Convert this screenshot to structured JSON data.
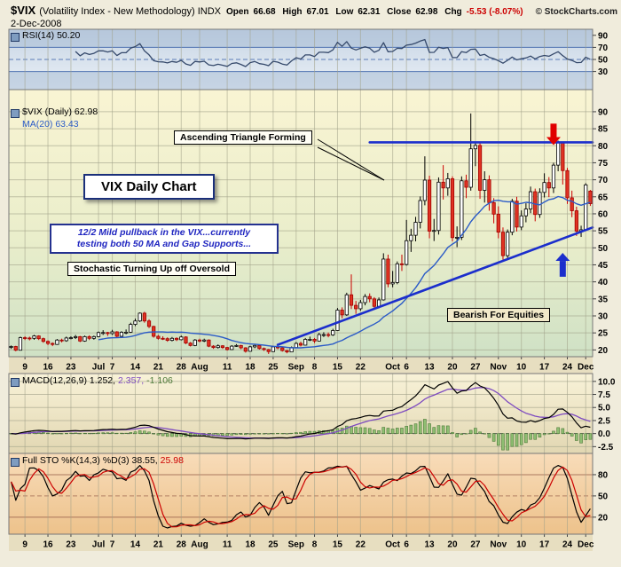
{
  "header": {
    "symbol": "$VIX",
    "name": "(Volatility Index - New Methodology) INDX",
    "date": "2-Dec-2008",
    "quote": {
      "open_label": "Open",
      "open": "66.68",
      "high_label": "High",
      "high": "67.01",
      "low_label": "Low",
      "low": "62.31",
      "close_label": "Close",
      "close": "62.98",
      "chg_label": "Chg",
      "chg": "-5.53 (-8.07%)"
    },
    "copyright": "© StockCharts.com"
  },
  "panels": {
    "rsi": {
      "label": "RSI(14) 50.20"
    },
    "main": {
      "label": "$VIX (Daily) 62.98",
      "ma_label": "MA(20) 63.43"
    },
    "macd": {
      "label": "MACD(12,26,9)",
      "value1": "1.252,",
      "value2": "2.357,",
      "value3": "-1.106"
    },
    "sto": {
      "label": "Full STO %K(14,3) %D(3)",
      "value1": "38.55,",
      "value2": "25.98"
    }
  },
  "annotations": {
    "triangle": "Ascending Triangle Forming",
    "title": "VIX Daily Chart",
    "pullback_line1": "12/2  Mild pullback in the VIX...currently",
    "pullback_line2": "testing both 50 MA and Gap Supports...",
    "stochastic": "Stochastic Turning Up off Oversold",
    "bearish": "Bearish For Equities"
  },
  "colors": {
    "up_candle": "#000000",
    "down_candle": "#cc0000",
    "ma20": "#2b5bc7",
    "trendline": "#1b2ecc",
    "rsi_line": "#35496b",
    "macd_line": "#000000",
    "macd_signal": "#7e4bc0",
    "macd_hist": "#8fbe72",
    "sto_k": "#000000",
    "sto_d": "#cc0000",
    "chg_negative": "#cc0000",
    "red_arrow": "#e00000",
    "blue_arrow": "#1b2ecc"
  },
  "chart_data": {
    "type": "candlestick",
    "title": "$VIX (Daily)",
    "date_range": "Jun 2008 - 2 Dec 2008",
    "ohlc": [
      [
        20.8,
        21.3,
        20.3,
        21.0
      ],
      [
        21.0,
        21.2,
        19.6,
        19.9
      ],
      [
        19.9,
        23.9,
        19.8,
        23.6
      ],
      [
        23.6,
        24.0,
        22.9,
        23.5
      ],
      [
        23.5,
        23.9,
        22.8,
        23.4
      ],
      [
        23.4,
        24.4,
        23.0,
        24.1
      ],
      [
        24.1,
        24.3,
        22.9,
        23.3
      ],
      [
        23.3,
        23.6,
        22.1,
        22.5
      ],
      [
        22.5,
        22.8,
        21.4,
        21.9
      ],
      [
        21.9,
        22.2,
        21.1,
        21.6
      ],
      [
        21.6,
        23.2,
        21.5,
        22.9
      ],
      [
        22.9,
        23.3,
        22.2,
        22.7
      ],
      [
        22.7,
        23.9,
        22.4,
        23.5
      ],
      [
        23.5,
        24.0,
        23.1,
        23.6
      ],
      [
        23.6,
        24.4,
        23.2,
        23.9
      ],
      [
        23.9,
        24.1,
        22.3,
        22.6
      ],
      [
        22.6,
        24.2,
        22.4,
        23.9
      ],
      [
        23.9,
        24.3,
        22.9,
        23.4
      ],
      [
        23.4,
        24.2,
        23.0,
        23.9
      ],
      [
        23.9,
        25.4,
        23.7,
        25.1
      ],
      [
        25.1,
        25.8,
        24.4,
        25.1
      ],
      [
        25.1,
        25.3,
        24.1,
        24.8
      ],
      [
        24.8,
        25.9,
        24.4,
        25.3
      ],
      [
        25.3,
        25.5,
        23.6,
        24.0
      ],
      [
        24.0,
        25.5,
        23.8,
        25.2
      ],
      [
        25.2,
        26.0,
        24.6,
        25.2
      ],
      [
        25.2,
        28.0,
        25.0,
        27.5
      ],
      [
        27.5,
        29.2,
        27.0,
        28.5
      ],
      [
        28.5,
        31.0,
        28.2,
        30.8
      ],
      [
        30.8,
        31.2,
        28.0,
        28.5
      ],
      [
        28.5,
        29.0,
        26.4,
        26.9
      ],
      [
        26.9,
        27.1,
        23.6,
        24.0
      ],
      [
        24.0,
        24.4,
        23.0,
        23.4
      ],
      [
        23.4,
        24.0,
        22.9,
        23.3
      ],
      [
        23.3,
        23.7,
        22.4,
        22.8
      ],
      [
        22.8,
        23.8,
        22.5,
        23.4
      ],
      [
        23.4,
        23.7,
        22.6,
        23.0
      ],
      [
        23.0,
        24.2,
        22.8,
        23.8
      ],
      [
        23.8,
        24.0,
        21.7,
        22.0
      ],
      [
        22.0,
        22.3,
        21.0,
        21.3
      ],
      [
        21.3,
        23.2,
        21.1,
        22.9
      ],
      [
        22.9,
        23.3,
        22.2,
        22.6
      ],
      [
        22.6,
        23.3,
        22.3,
        22.9
      ],
      [
        22.9,
        23.1,
        20.8,
        21.1
      ],
      [
        21.1,
        21.4,
        20.3,
        20.7
      ],
      [
        20.7,
        21.6,
        20.4,
        21.2
      ],
      [
        21.2,
        21.4,
        20.3,
        20.7
      ],
      [
        20.7,
        20.9,
        19.8,
        20.1
      ],
      [
        20.1,
        21.4,
        20.0,
        21.1
      ],
      [
        21.1,
        21.7,
        20.9,
        21.3
      ],
      [
        21.3,
        21.5,
        20.2,
        20.6
      ],
      [
        20.6,
        20.8,
        19.2,
        19.6
      ],
      [
        19.6,
        21.2,
        19.5,
        20.9
      ],
      [
        20.9,
        21.7,
        20.5,
        21.3
      ],
      [
        21.3,
        21.5,
        20.1,
        20.4
      ],
      [
        20.4,
        20.7,
        19.7,
        20.1
      ],
      [
        20.1,
        20.3,
        18.8,
        19.5
      ],
      [
        19.5,
        21.2,
        19.4,
        20.9
      ],
      [
        20.9,
        21.2,
        20.2,
        20.6
      ],
      [
        20.6,
        20.9,
        19.5,
        19.8
      ],
      [
        19.8,
        20.0,
        19.0,
        19.4
      ],
      [
        19.4,
        21.0,
        19.3,
        20.7
      ],
      [
        20.7,
        22.3,
        20.6,
        21.9
      ],
      [
        21.9,
        22.4,
        21.0,
        21.4
      ],
      [
        21.4,
        23.5,
        21.3,
        23.1
      ],
      [
        23.1,
        23.9,
        22.6,
        23.1
      ],
      [
        23.1,
        23.5,
        22.0,
        22.6
      ],
      [
        22.6,
        25.0,
        22.5,
        24.5
      ],
      [
        24.5,
        25.2,
        23.8,
        24.5
      ],
      [
        24.5,
        25.1,
        23.7,
        24.4
      ],
      [
        24.4,
        26.2,
        24.1,
        25.7
      ],
      [
        25.7,
        32.3,
        25.6,
        31.7
      ],
      [
        31.7,
        32.5,
        29.3,
        30.3
      ],
      [
        30.3,
        36.8,
        30.0,
        36.2
      ],
      [
        36.2,
        42.2,
        32.0,
        33.1
      ],
      [
        33.1,
        34.4,
        30.6,
        32.1
      ],
      [
        32.1,
        34.7,
        31.5,
        33.9
      ],
      [
        33.9,
        36.4,
        33.1,
        35.7
      ],
      [
        35.7,
        36.6,
        34.0,
        35.0
      ],
      [
        35.0,
        35.5,
        31.8,
        32.8
      ],
      [
        32.8,
        35.4,
        32.2,
        34.7
      ],
      [
        34.7,
        48.4,
        34.5,
        46.7
      ],
      [
        46.7,
        48.0,
        38.4,
        39.4
      ],
      [
        39.4,
        43.2,
        38.4,
        39.8
      ],
      [
        39.8,
        46.0,
        39.3,
        45.3
      ],
      [
        45.3,
        48.0,
        43.2,
        45.1
      ],
      [
        45.1,
        58.2,
        44.8,
        52.1
      ],
      [
        52.1,
        55.6,
        48.8,
        53.7
      ],
      [
        53.7,
        59.1,
        51.9,
        57.5
      ],
      [
        57.5,
        65.1,
        55.7,
        63.9
      ],
      [
        63.9,
        76.9,
        62.5,
        69.9
      ],
      [
        69.9,
        71.2,
        52.8,
        54.9
      ],
      [
        54.9,
        58.5,
        52.0,
        55.1
      ],
      [
        55.1,
        70.7,
        53.9,
        69.3
      ],
      [
        69.3,
        74.3,
        64.2,
        67.6
      ],
      [
        67.6,
        72.0,
        65.3,
        70.3
      ],
      [
        70.3,
        71.0,
        51.9,
        53.0
      ],
      [
        53.0,
        56.3,
        50.2,
        53.1
      ],
      [
        53.1,
        71.0,
        52.3,
        69.7
      ],
      [
        69.7,
        71.5,
        64.6,
        67.8
      ],
      [
        67.8,
        89.5,
        66.8,
        79.1
      ],
      [
        79.1,
        81.1,
        74.0,
        80.1
      ],
      [
        80.1,
        81.0,
        64.4,
        66.9
      ],
      [
        66.9,
        72.5,
        63.3,
        70.0
      ],
      [
        70.0,
        71.3,
        60.9,
        63.3
      ],
      [
        63.3,
        64.6,
        57.2,
        59.9
      ],
      [
        59.9,
        62.2,
        52.8,
        54.6
      ],
      [
        54.6,
        56.0,
        46.5,
        47.7
      ],
      [
        47.7,
        55.4,
        47.0,
        54.6
      ],
      [
        54.6,
        64.4,
        53.7,
        63.7
      ],
      [
        63.7,
        65.0,
        54.8,
        56.1
      ],
      [
        56.1,
        61.0,
        55.2,
        59.4
      ],
      [
        59.4,
        63.1,
        57.5,
        61.4
      ],
      [
        61.4,
        68.0,
        60.2,
        66.5
      ],
      [
        66.5,
        67.4,
        57.8,
        59.8
      ],
      [
        59.8,
        67.5,
        58.8,
        66.3
      ],
      [
        66.3,
        71.9,
        64.8,
        69.2
      ],
      [
        69.2,
        70.8,
        64.9,
        67.6
      ],
      [
        67.6,
        75.0,
        66.1,
        74.3
      ],
      [
        74.3,
        81.5,
        72.5,
        80.9
      ],
      [
        80.9,
        81.2,
        68.6,
        72.7
      ],
      [
        72.7,
        73.5,
        62.9,
        64.7
      ],
      [
        64.7,
        66.8,
        59.0,
        60.9
      ],
      [
        60.9,
        62.1,
        53.5,
        54.9
      ],
      [
        54.9,
        56.5,
        53.2,
        55.3
      ],
      [
        55.3,
        69.0,
        55.0,
        68.5
      ],
      [
        66.68,
        67.01,
        62.31,
        62.98
      ]
    ],
    "x_ticks": [
      {
        "i": 3,
        "label": "9"
      },
      {
        "i": 8,
        "label": "16"
      },
      {
        "i": 13,
        "label": "23"
      },
      {
        "i": 19,
        "label": "Jul"
      },
      {
        "i": 22,
        "label": "7"
      },
      {
        "i": 27,
        "label": "14"
      },
      {
        "i": 32,
        "label": "21"
      },
      {
        "i": 37,
        "label": "28"
      },
      {
        "i": 41,
        "label": "Aug"
      },
      {
        "i": 47,
        "label": "11"
      },
      {
        "i": 52,
        "label": "18"
      },
      {
        "i": 57,
        "label": "25"
      },
      {
        "i": 62,
        "label": "Sep"
      },
      {
        "i": 66,
        "label": "8"
      },
      {
        "i": 71,
        "label": "15"
      },
      {
        "i": 76,
        "label": "22"
      },
      {
        "i": 83,
        "label": "Oct"
      },
      {
        "i": 86,
        "label": "6"
      },
      {
        "i": 91,
        "label": "13"
      },
      {
        "i": 96,
        "label": "20"
      },
      {
        "i": 101,
        "label": "27"
      },
      {
        "i": 106,
        "label": "Nov"
      },
      {
        "i": 111,
        "label": "10"
      },
      {
        "i": 116,
        "label": "17"
      },
      {
        "i": 121,
        "label": "24"
      },
      {
        "i": 125,
        "label": "Dec"
      }
    ],
    "main_axis": {
      "min": 18,
      "max": 96.5,
      "labels": [
        90,
        85,
        80,
        75,
        70,
        65,
        60,
        55,
        50,
        45,
        40,
        35,
        30,
        25,
        20
      ]
    },
    "rsi_axis": {
      "labels": [
        90,
        70,
        50,
        30
      ],
      "solid_lines": [
        70,
        30
      ],
      "dashed_lines": [
        50
      ]
    },
    "macd_axis": {
      "labels": [
        {
          "t": "10.0",
          "v": 10.0
        },
        {
          "t": "7.5",
          "v": 7.5
        },
        {
          "t": "5.0",
          "v": 5.0
        },
        {
          "t": "2.5",
          "v": 2.5
        },
        {
          "t": "0.0",
          "v": 0.0
        },
        {
          "t": "-2.5",
          "v": -2.5
        }
      ]
    },
    "sto_axis": {
      "labels": [
        80,
        50,
        20
      ],
      "solid_lines": [
        80,
        20
      ],
      "dashed_lines": [
        50
      ]
    },
    "overlays": {
      "ma_period": 20,
      "resistance": {
        "i1": 78,
        "i2": 127,
        "value": 81
      },
      "support": {
        "i1": 58,
        "v1": 21.5,
        "i2": 127,
        "v2": 56
      },
      "red_arrow": {
        "i": 118,
        "from": 86.5,
        "to": 80.2
      },
      "blue_arrow": {
        "i": 120,
        "from": 41.5,
        "to": 48.5
      }
    },
    "indicators": {
      "rsi_period": 14,
      "macd_params": [
        12,
        26,
        9
      ],
      "sto_params": [
        14,
        3,
        3
      ],
      "last_values": {
        "rsi": 50.2,
        "ma20": 63.43,
        "macd": 1.252,
        "macd_signal": 2.357,
        "macd_hist": -1.106,
        "sto_k": 38.55,
        "sto_d": 25.98
      }
    }
  }
}
